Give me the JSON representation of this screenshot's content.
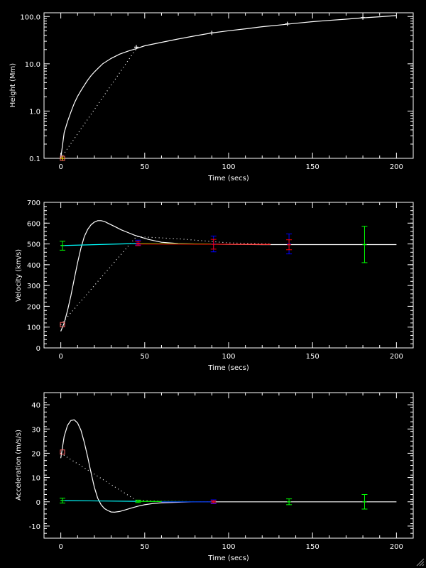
{
  "chart_data": [
    {
      "type": "line",
      "panel": "height",
      "xlabel": "Time (secs)",
      "ylabel": "Height (Mm)",
      "xlim": [
        -10,
        210
      ],
      "ylim": [
        0.1,
        120
      ],
      "yscale": "log",
      "xticks": [
        0,
        50,
        100,
        150,
        200
      ],
      "xtick_labels": [
        "0",
        "50",
        "100",
        "150",
        "200"
      ],
      "yticks": [
        0.1,
        1,
        10,
        100
      ],
      "ytick_labels": [
        "0.1",
        "1.0",
        "10.0",
        "100.0"
      ],
      "series": [
        {
          "style": "solid",
          "color": "#ffffff",
          "x": [
            0,
            2,
            4,
            6,
            8,
            10,
            12,
            14,
            16,
            18,
            20,
            22,
            25,
            30,
            35,
            40,
            45,
            50,
            60,
            70,
            80,
            90,
            100,
            110,
            120,
            130,
            140,
            150,
            160,
            170,
            180,
            190,
            200
          ],
          "y": [
            0.1,
            0.35,
            0.6,
            0.95,
            1.45,
            2.05,
            2.7,
            3.5,
            4.5,
            5.6,
            6.7,
            7.9,
            10.0,
            13.0,
            16.0,
            18.5,
            21.0,
            24.0,
            28.5,
            33.5,
            39.0,
            45.0,
            50.0,
            55.0,
            61.0,
            66.0,
            72.0,
            78.0,
            83.0,
            88.0,
            94.0,
            99.0,
            105.0
          ]
        },
        {
          "style": "dotted",
          "color": "#ffffff",
          "x": [
            0,
            45
          ],
          "y": [
            0.1,
            21.0
          ]
        }
      ],
      "points": [
        {
          "marker": "plus",
          "color": "#ffffff",
          "x": 45,
          "y": 22.5
        },
        {
          "marker": "plus",
          "color": "#ffffff",
          "x": 90,
          "y": 45.0
        },
        {
          "marker": "plus",
          "color": "#ffffff",
          "x": 135,
          "y": 70.0
        },
        {
          "marker": "plus",
          "color": "#ffffff",
          "x": 180,
          "y": 95.0
        },
        {
          "marker": "square",
          "color": "#ff6666",
          "x": 1,
          "y": 0.1
        },
        {
          "marker": "plus",
          "color": "#ffcc00",
          "x": 1,
          "y": 0.1
        }
      ]
    },
    {
      "type": "line",
      "panel": "velocity",
      "xlabel": "Time (secs)",
      "ylabel": "Velocity (km/s)",
      "xlim": [
        -10,
        210
      ],
      "ylim": [
        0,
        700
      ],
      "xticks": [
        0,
        50,
        100,
        150,
        200
      ],
      "xtick_labels": [
        "0",
        "50",
        "100",
        "150",
        "200"
      ],
      "yticks": [
        0,
        100,
        200,
        300,
        400,
        500,
        600,
        700
      ],
      "ytick_labels": [
        "0",
        "100",
        "200",
        "300",
        "400",
        "500",
        "600",
        "700"
      ],
      "series": [
        {
          "style": "solid",
          "color": "#ffffff",
          "x": [
            0,
            2,
            4,
            6,
            8,
            10,
            12,
            14,
            16,
            18,
            20,
            22,
            24,
            26,
            28,
            30,
            33,
            36,
            40,
            44,
            48,
            52,
            56,
            60,
            70,
            80,
            100,
            120,
            150,
            200
          ],
          "y": [
            80,
            120,
            180,
            250,
            330,
            410,
            480,
            535,
            570,
            592,
            605,
            612,
            612,
            608,
            600,
            592,
            580,
            568,
            555,
            542,
            532,
            522,
            515,
            508,
            502,
            500,
            498,
            497,
            497,
            497
          ]
        },
        {
          "style": "dotted",
          "color": "#ffffff",
          "x": [
            0,
            45,
            70,
            100,
            125
          ],
          "y": [
            112,
            535,
            525,
            505,
            500
          ]
        },
        {
          "style": "solid",
          "color": "#00ffff",
          "x": [
            0,
            45
          ],
          "y": [
            492,
            502
          ]
        },
        {
          "style": "solid",
          "color": "#00ff00",
          "x": [
            45,
            90
          ],
          "y": [
            502,
            500
          ]
        },
        {
          "style": "solid",
          "color": "#ff0000",
          "x": [
            45,
            125
          ],
          "y": [
            500,
            498
          ]
        }
      ],
      "errorbars": [
        {
          "color": "#00ff00",
          "x": 1,
          "y": 493,
          "lo": 470,
          "hi": 513
        },
        {
          "color": "#0000ff",
          "x": 46,
          "y": 505,
          "lo": 495,
          "hi": 518
        },
        {
          "color": "#ff0000",
          "x": 46,
          "y": 503,
          "lo": 492,
          "hi": 512
        },
        {
          "color": "#0000ff",
          "x": 91,
          "y": 500,
          "lo": 462,
          "hi": 538
        },
        {
          "color": "#ff0000",
          "x": 91,
          "y": 498,
          "lo": 475,
          "hi": 522
        },
        {
          "color": "#0000ff",
          "x": 136,
          "y": 500,
          "lo": 452,
          "hi": 548
        },
        {
          "color": "#ff0000",
          "x": 136,
          "y": 496,
          "lo": 472,
          "hi": 520
        },
        {
          "color": "#00ff00",
          "x": 181,
          "y": 497,
          "lo": 410,
          "hi": 585
        }
      ],
      "points": [
        {
          "marker": "square",
          "color": "#ff6666",
          "x": 1,
          "y": 112
        }
      ]
    },
    {
      "type": "line",
      "panel": "acceleration",
      "xlabel": "Time (secs)",
      "ylabel": "Acceleration (m/s/s)",
      "xlim": [
        -10,
        210
      ],
      "ylim": [
        -15,
        45
      ],
      "xticks": [
        0,
        50,
        100,
        150,
        200
      ],
      "xtick_labels": [
        "0",
        "50",
        "100",
        "150",
        "200"
      ],
      "yticks": [
        -10,
        0,
        10,
        20,
        30,
        40
      ],
      "ytick_labels": [
        "-10",
        "0",
        "10",
        "20",
        "30",
        "40"
      ],
      "series": [
        {
          "style": "solid",
          "color": "#ffffff",
          "x": [
            0,
            2,
            4,
            6,
            8,
            10,
            12,
            14,
            16,
            18,
            20,
            22,
            24,
            26,
            28,
            30,
            32,
            35,
            38,
            42,
            46,
            50,
            55,
            60,
            70,
            80,
            90,
            100,
            150,
            200
          ],
          "y": [
            18,
            27,
            31.5,
            33.5,
            33.8,
            32.5,
            29.5,
            24.5,
            18.5,
            12,
            6,
            1.5,
            -1.2,
            -2.8,
            -3.6,
            -4.2,
            -4.3,
            -4.0,
            -3.4,
            -2.6,
            -1.8,
            -1.2,
            -0.7,
            -0.4,
            -0.2,
            0,
            0,
            0,
            0,
            0
          ]
        },
        {
          "style": "dotted",
          "color": "#ffffff",
          "x": [
            0,
            45,
            60,
            90
          ],
          "y": [
            20,
            0.6,
            0.2,
            0
          ]
        },
        {
          "style": "solid",
          "color": "#00ffff",
          "x": [
            0,
            45
          ],
          "y": [
            0.5,
            0.2
          ]
        },
        {
          "style": "solid",
          "color": "#00ff00",
          "x": [
            45,
            90
          ],
          "y": [
            0.2,
            0
          ]
        },
        {
          "style": "solid",
          "color": "#0000ff",
          "x": [
            60,
            90
          ],
          "y": [
            0,
            0
          ]
        }
      ],
      "errorbars": [
        {
          "color": "#00ff00",
          "x": 1,
          "y": 0.5,
          "lo": -0.5,
          "hi": 1.5
        },
        {
          "color": "#00ff00",
          "x": 46,
          "y": 0.2,
          "lo": -0.3,
          "hi": 0.7
        },
        {
          "color": "#0000ff",
          "x": 91,
          "y": 0,
          "lo": -0.8,
          "hi": 0.8
        },
        {
          "color": "#ff0000",
          "x": 91,
          "y": 0,
          "lo": -0.5,
          "hi": 0.5
        },
        {
          "color": "#00ff00",
          "x": 136,
          "y": 0,
          "lo": -1.2,
          "hi": 1.2
        },
        {
          "color": "#00ff00",
          "x": 181,
          "y": 0,
          "lo": -3,
          "hi": 3
        }
      ],
      "points": [
        {
          "marker": "square",
          "color": "#ff6666",
          "x": 1,
          "y": 20.5
        }
      ]
    }
  ]
}
